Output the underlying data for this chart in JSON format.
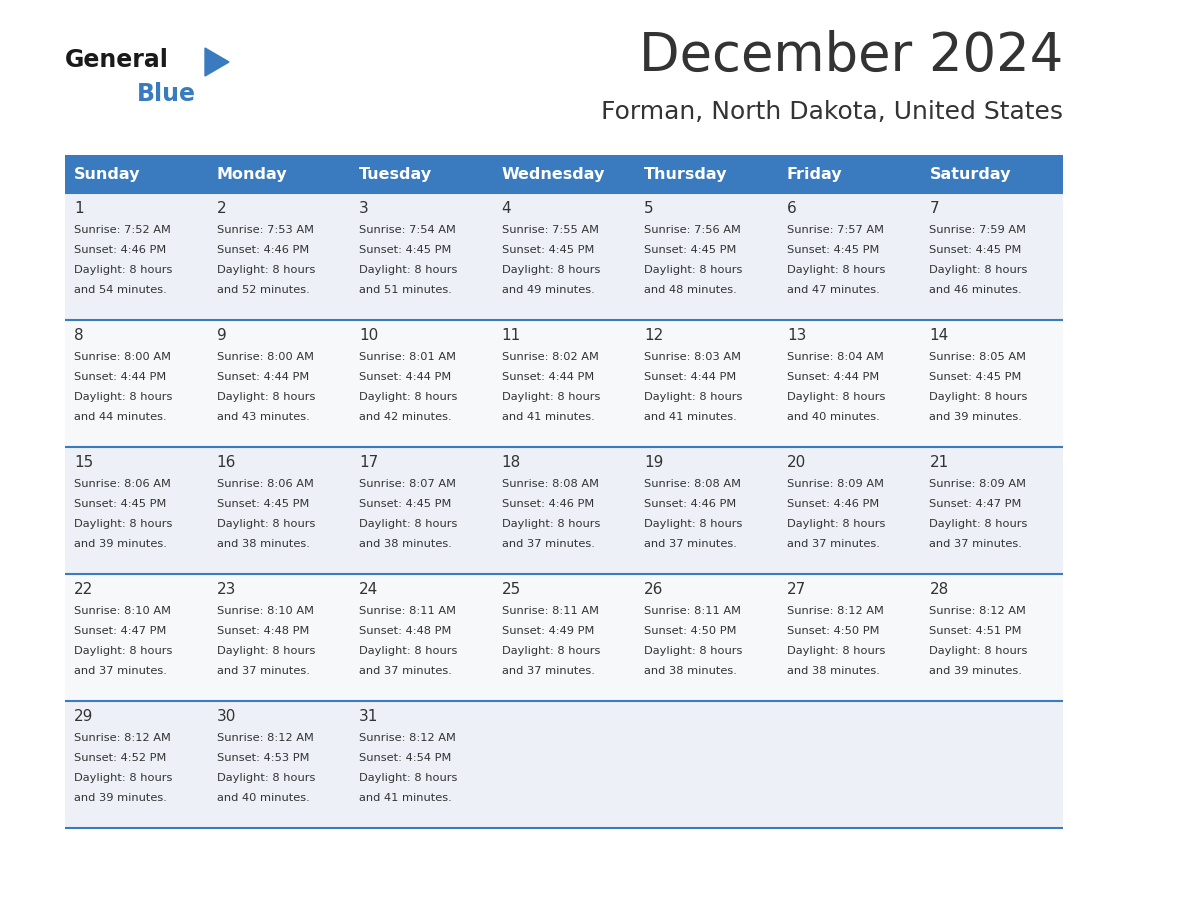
{
  "title": "December 2024",
  "subtitle": "Forman, North Dakota, United States",
  "days_of_week": [
    "Sunday",
    "Monday",
    "Tuesday",
    "Wednesday",
    "Thursday",
    "Friday",
    "Saturday"
  ],
  "header_bg": "#3a7bbf",
  "header_text_color": "#ffffff",
  "row_bg": [
    "#edf1f7",
    "#f7f8fa"
  ],
  "cell_text_color": "#333333",
  "day_num_color": "#333333",
  "line_color": "#3a7bbf",
  "logo_general_color": "#1a1a1a",
  "logo_blue_color": "#3a7bbf",
  "calendar": [
    [
      {
        "day": 1,
        "sunrise": "7:52 AM",
        "sunset": "4:46 PM",
        "daylight": "8 hours and 54 minutes."
      },
      {
        "day": 2,
        "sunrise": "7:53 AM",
        "sunset": "4:46 PM",
        "daylight": "8 hours and 52 minutes."
      },
      {
        "day": 3,
        "sunrise": "7:54 AM",
        "sunset": "4:45 PM",
        "daylight": "8 hours and 51 minutes."
      },
      {
        "day": 4,
        "sunrise": "7:55 AM",
        "sunset": "4:45 PM",
        "daylight": "8 hours and 49 minutes."
      },
      {
        "day": 5,
        "sunrise": "7:56 AM",
        "sunset": "4:45 PM",
        "daylight": "8 hours and 48 minutes."
      },
      {
        "day": 6,
        "sunrise": "7:57 AM",
        "sunset": "4:45 PM",
        "daylight": "8 hours and 47 minutes."
      },
      {
        "day": 7,
        "sunrise": "7:59 AM",
        "sunset": "4:45 PM",
        "daylight": "8 hours and 46 minutes."
      }
    ],
    [
      {
        "day": 8,
        "sunrise": "8:00 AM",
        "sunset": "4:44 PM",
        "daylight": "8 hours and 44 minutes."
      },
      {
        "day": 9,
        "sunrise": "8:00 AM",
        "sunset": "4:44 PM",
        "daylight": "8 hours and 43 minutes."
      },
      {
        "day": 10,
        "sunrise": "8:01 AM",
        "sunset": "4:44 PM",
        "daylight": "8 hours and 42 minutes."
      },
      {
        "day": 11,
        "sunrise": "8:02 AM",
        "sunset": "4:44 PM",
        "daylight": "8 hours and 41 minutes."
      },
      {
        "day": 12,
        "sunrise": "8:03 AM",
        "sunset": "4:44 PM",
        "daylight": "8 hours and 41 minutes."
      },
      {
        "day": 13,
        "sunrise": "8:04 AM",
        "sunset": "4:44 PM",
        "daylight": "8 hours and 40 minutes."
      },
      {
        "day": 14,
        "sunrise": "8:05 AM",
        "sunset": "4:45 PM",
        "daylight": "8 hours and 39 minutes."
      }
    ],
    [
      {
        "day": 15,
        "sunrise": "8:06 AM",
        "sunset": "4:45 PM",
        "daylight": "8 hours and 39 minutes."
      },
      {
        "day": 16,
        "sunrise": "8:06 AM",
        "sunset": "4:45 PM",
        "daylight": "8 hours and 38 minutes."
      },
      {
        "day": 17,
        "sunrise": "8:07 AM",
        "sunset": "4:45 PM",
        "daylight": "8 hours and 38 minutes."
      },
      {
        "day": 18,
        "sunrise": "8:08 AM",
        "sunset": "4:46 PM",
        "daylight": "8 hours and 37 minutes."
      },
      {
        "day": 19,
        "sunrise": "8:08 AM",
        "sunset": "4:46 PM",
        "daylight": "8 hours and 37 minutes."
      },
      {
        "day": 20,
        "sunrise": "8:09 AM",
        "sunset": "4:46 PM",
        "daylight": "8 hours and 37 minutes."
      },
      {
        "day": 21,
        "sunrise": "8:09 AM",
        "sunset": "4:47 PM",
        "daylight": "8 hours and 37 minutes."
      }
    ],
    [
      {
        "day": 22,
        "sunrise": "8:10 AM",
        "sunset": "4:47 PM",
        "daylight": "8 hours and 37 minutes."
      },
      {
        "day": 23,
        "sunrise": "8:10 AM",
        "sunset": "4:48 PM",
        "daylight": "8 hours and 37 minutes."
      },
      {
        "day": 24,
        "sunrise": "8:11 AM",
        "sunset": "4:48 PM",
        "daylight": "8 hours and 37 minutes."
      },
      {
        "day": 25,
        "sunrise": "8:11 AM",
        "sunset": "4:49 PM",
        "daylight": "8 hours and 37 minutes."
      },
      {
        "day": 26,
        "sunrise": "8:11 AM",
        "sunset": "4:50 PM",
        "daylight": "8 hours and 38 minutes."
      },
      {
        "day": 27,
        "sunrise": "8:12 AM",
        "sunset": "4:50 PM",
        "daylight": "8 hours and 38 minutes."
      },
      {
        "day": 28,
        "sunrise": "8:12 AM",
        "sunset": "4:51 PM",
        "daylight": "8 hours and 39 minutes."
      }
    ],
    [
      {
        "day": 29,
        "sunrise": "8:12 AM",
        "sunset": "4:52 PM",
        "daylight": "8 hours and 39 minutes."
      },
      {
        "day": 30,
        "sunrise": "8:12 AM",
        "sunset": "4:53 PM",
        "daylight": "8 hours and 40 minutes."
      },
      {
        "day": 31,
        "sunrise": "8:12 AM",
        "sunset": "4:54 PM",
        "daylight": "8 hours and 41 minutes."
      },
      null,
      null,
      null,
      null
    ]
  ]
}
